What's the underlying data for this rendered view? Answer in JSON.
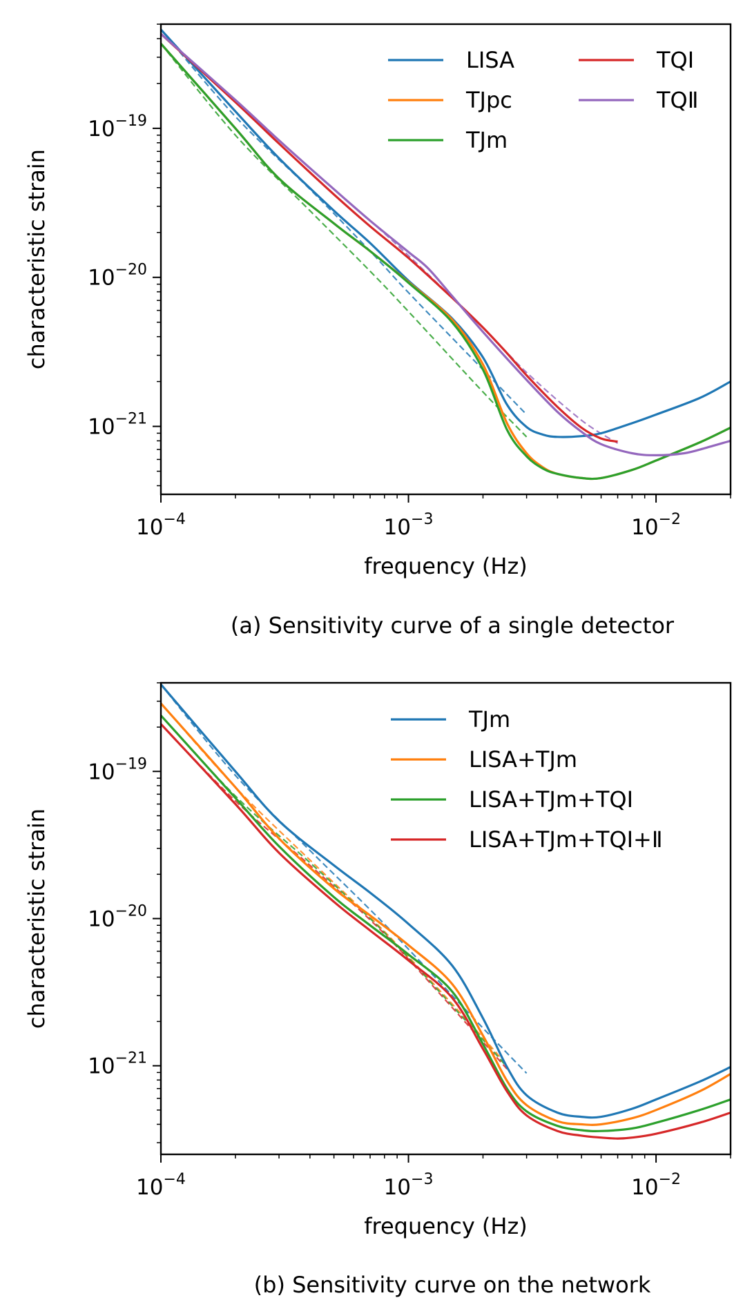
{
  "chart_data": [
    {
      "type": "line",
      "caption": "(a) Sensitivity curve of a single detector",
      "xlabel": "frequency (Hz)",
      "ylabel": "characteristic strain",
      "xscale": "log",
      "yscale": "log",
      "xlim": [
        0.0001,
        0.02
      ],
      "ylim": [
        3.5e-22,
        5e-19
      ],
      "xticks": [
        {
          "value": 0.0001,
          "base": "10",
          "exp": "−4"
        },
        {
          "value": 0.001,
          "base": "10",
          "exp": "−3"
        },
        {
          "value": 0.01,
          "base": "10",
          "exp": "−2"
        }
      ],
      "yticks": [
        {
          "value": 1e-19,
          "base": "10",
          "exp": "−19"
        },
        {
          "value": 1e-20,
          "base": "10",
          "exp": "−20"
        },
        {
          "value": 1e-21,
          "base": "10",
          "exp": "−21"
        }
      ],
      "legend": {
        "location": "top-right",
        "columns": 2
      },
      "series": [
        {
          "name": "LISA",
          "color": "#1f77b4",
          "style": "solid",
          "x": [
            0.0001,
            0.0002,
            0.0003,
            0.0005,
            0.0007,
            0.001,
            0.0015,
            0.002,
            0.0025,
            0.003,
            0.0035,
            0.004,
            0.005,
            0.006,
            0.008,
            0.01,
            0.015,
            0.02
          ],
          "y": [
            4.6e-19,
            1.3e-19,
            6.3e-20,
            2.8e-20,
            1.7e-20,
            9.5e-21,
            5.3e-21,
            2.9e-21,
            1.4e-21,
            9.9e-22,
            8.8e-22,
            8.5e-22,
            8.6e-22,
            9e-22,
            1.05e-21,
            1.2e-21,
            1.55e-21,
            2e-21
          ]
        },
        {
          "name": "TJpc",
          "color": "#ff7f0e",
          "style": "solid",
          "x": [
            0.0001,
            0.0002,
            0.0003,
            0.0005,
            0.0007,
            0.001,
            0.0015,
            0.002,
            0.0025,
            0.003,
            0.0035,
            0.004,
            0.005,
            0.006,
            0.008,
            0.01,
            0.015,
            0.02
          ],
          "y": [
            3.7e-19,
            1e-19,
            4.6e-20,
            2.3e-20,
            1.5e-20,
            9.3e-21,
            5.2e-21,
            2.6e-21,
            1.05e-21,
            6.6e-22,
            5.3e-22,
            4.8e-22,
            4.5e-22,
            4.5e-22,
            5.1e-22,
            5.9e-22,
            7.8e-22,
            9.8e-22
          ]
        },
        {
          "name": "TJm",
          "color": "#2ca02c",
          "style": "solid",
          "x": [
            0.0001,
            0.0002,
            0.0003,
            0.0005,
            0.0007,
            0.001,
            0.0015,
            0.002,
            0.0025,
            0.003,
            0.0035,
            0.004,
            0.005,
            0.006,
            0.008,
            0.01,
            0.015,
            0.02
          ],
          "y": [
            3.7e-19,
            1e-19,
            4.6e-20,
            2.3e-20,
            1.5e-20,
            9.2e-21,
            5e-21,
            2.4e-21,
            9.5e-22,
            6.3e-22,
            5.2e-22,
            4.8e-22,
            4.5e-22,
            4.5e-22,
            5.1e-22,
            5.9e-22,
            7.8e-22,
            9.8e-22
          ]
        },
        {
          "name": "TQI",
          "color": "#d62728",
          "style": "solid",
          "x": [
            0.0001,
            0.0002,
            0.0003,
            0.0005,
            0.0007,
            0.001,
            0.0015,
            0.002,
            0.0025,
            0.003,
            0.004,
            0.005,
            0.006,
            0.007
          ],
          "y": [
            4.3e-19,
            1.5e-19,
            7.9e-20,
            3.6e-20,
            2.2e-20,
            1.35e-20,
            7.3e-21,
            4.6e-21,
            3.1e-21,
            2.2e-21,
            1.35e-21,
            9.8e-22,
            8.3e-22,
            7.9e-22
          ]
        },
        {
          "name": "TQⅡ",
          "color": "#9467bd",
          "style": "solid",
          "x": [
            0.0001,
            0.0002,
            0.0003,
            0.0005,
            0.0007,
            0.001,
            0.0012,
            0.0015,
            0.002,
            0.003,
            0.004,
            0.005,
            0.006,
            0.008,
            0.01,
            0.013,
            0.016,
            0.02
          ],
          "y": [
            4.3e-19,
            1.55e-19,
            8.3e-20,
            3.9e-20,
            2.4e-20,
            1.48e-20,
            1.15e-20,
            7.5e-21,
            4.3e-21,
            2.05e-21,
            1.25e-21,
            9.2e-22,
            7.6e-22,
            6.6e-22,
            6.4e-22,
            6.6e-22,
            7.2e-22,
            8e-22
          ]
        },
        {
          "name": "",
          "color": "#1f77b4",
          "style": "dashed",
          "x": [
            0.0001,
            0.0002,
            0.0004,
            0.0007,
            0.001,
            0.002,
            0.003
          ],
          "y": [
            4.6e-19,
            1.2e-19,
            3.9e-20,
            1.5e-20,
            7.9e-21,
            2.4e-21,
            1.2e-21
          ]
        },
        {
          "name": "",
          "color": "#2ca02c",
          "style": "dashed",
          "x": [
            0.0001,
            0.0002,
            0.0004,
            0.0007,
            0.001,
            0.002,
            0.003
          ],
          "y": [
            3.7e-19,
            9e-20,
            2.8e-20,
            1.1e-20,
            5.9e-21,
            1.7e-21,
            8.5e-22
          ]
        },
        {
          "name": "",
          "color": "#9467bd",
          "style": "dashed",
          "x": [
            0.0001,
            0.0002,
            0.0004,
            0.0007,
            0.001,
            0.002,
            0.003,
            0.005,
            0.007
          ],
          "y": [
            4.3e-19,
            1.55e-19,
            5.4e-20,
            2.4e-20,
            1.4e-20,
            4.6e-21,
            2.3e-21,
            1.1e-21,
            7.7e-22
          ]
        }
      ]
    },
    {
      "type": "line",
      "caption": "(b) Sensitivity curve on the network",
      "xlabel": "frequency (Hz)",
      "ylabel": "characteristic strain",
      "xscale": "log",
      "yscale": "log",
      "xlim": [
        0.0001,
        0.02
      ],
      "ylim": [
        2.5e-22,
        4e-19
      ],
      "xticks": [
        {
          "value": 0.0001,
          "base": "10",
          "exp": "−4"
        },
        {
          "value": 0.001,
          "base": "10",
          "exp": "−3"
        },
        {
          "value": 0.01,
          "base": "10",
          "exp": "−2"
        }
      ],
      "yticks": [
        {
          "value": 1e-19,
          "base": "10",
          "exp": "−19"
        },
        {
          "value": 1e-20,
          "base": "10",
          "exp": "−20"
        },
        {
          "value": 1e-21,
          "base": "10",
          "exp": "−21"
        }
      ],
      "legend": {
        "location": "top-right",
        "columns": 1
      },
      "series": [
        {
          "name": "TJm",
          "color": "#1f77b4",
          "style": "solid",
          "x": [
            0.0001,
            0.0002,
            0.0003,
            0.0005,
            0.0007,
            0.001,
            0.0015,
            0.002,
            0.0025,
            0.003,
            0.004,
            0.005,
            0.006,
            0.008,
            0.01,
            0.015,
            0.02
          ],
          "y": [
            3.9e-19,
            1e-19,
            4.6e-20,
            2.3e-20,
            1.5e-20,
            9.2e-21,
            4.8e-21,
            2.1e-21,
            9.8e-22,
            6.3e-22,
            4.8e-22,
            4.5e-22,
            4.5e-22,
            5.1e-22,
            5.9e-22,
            7.8e-22,
            9.8e-22
          ]
        },
        {
          "name": "LISA+TJm",
          "color": "#ff7f0e",
          "style": "solid",
          "x": [
            0.0001,
            0.0002,
            0.0003,
            0.0005,
            0.0007,
            0.001,
            0.0015,
            0.002,
            0.0025,
            0.003,
            0.004,
            0.005,
            0.006,
            0.008,
            0.01,
            0.015,
            0.02
          ],
          "y": [
            2.9e-19,
            7.8e-20,
            3.5e-20,
            1.6e-20,
            1.05e-20,
            6.6e-21,
            3.6e-21,
            1.6e-21,
            7.9e-22,
            5.4e-22,
            4.2e-22,
            4e-22,
            4e-22,
            4.4e-22,
            5e-22,
            6.7e-22,
            8.8e-22
          ]
        },
        {
          "name": "LISA+TJm+TQI",
          "color": "#2ca02c",
          "style": "solid",
          "x": [
            0.0001,
            0.0002,
            0.0003,
            0.0005,
            0.0007,
            0.001,
            0.0015,
            0.002,
            0.0025,
            0.003,
            0.004,
            0.005,
            0.006,
            0.008,
            0.01,
            0.015,
            0.02
          ],
          "y": [
            2.4e-19,
            6.6e-20,
            3.1e-20,
            1.4e-20,
            9e-21,
            5.7e-21,
            3.2e-21,
            1.4e-21,
            7e-22,
            4.9e-22,
            3.9e-22,
            3.65e-22,
            3.6e-22,
            3.75e-22,
            4.1e-22,
            5e-22,
            5.9e-22
          ]
        },
        {
          "name": "LISA+TJm+TQI+Ⅱ",
          "color": "#d62728",
          "style": "solid",
          "x": [
            0.0001,
            0.0002,
            0.0003,
            0.0005,
            0.0007,
            0.001,
            0.0015,
            0.002,
            0.0025,
            0.003,
            0.004,
            0.005,
            0.006,
            0.007,
            0.008,
            0.01,
            0.015,
            0.02
          ],
          "y": [
            2.1e-19,
            6e-20,
            2.8e-20,
            1.3e-20,
            8.3e-21,
            5.2e-21,
            2.9e-21,
            1.3e-21,
            6.7e-22,
            4.6e-22,
            3.6e-22,
            3.35e-22,
            3.25e-22,
            3.2e-22,
            3.25e-22,
            3.45e-22,
            4.1e-22,
            4.8e-22
          ]
        },
        {
          "name": "",
          "color": "#1f77b4",
          "style": "dashed",
          "x": [
            0.0001,
            0.0002,
            0.0004,
            0.0007,
            0.001,
            0.002,
            0.003
          ],
          "y": [
            3.9e-19,
            9.4e-20,
            2.9e-20,
            1.15e-20,
            6.2e-21,
            1.8e-21,
            8.9e-22
          ]
        },
        {
          "name": "",
          "color": "#ff7f0e",
          "style": "dashed",
          "x": [
            0.0001,
            0.0002,
            0.0004,
            0.0007,
            0.001,
            0.002,
            0.0025
          ],
          "y": [
            2.9e-19,
            7.8e-20,
            2.5e-20,
            1.02e-20,
            5.5e-21,
            1.55e-21,
            1e-21
          ]
        },
        {
          "name": "",
          "color": "#2ca02c",
          "style": "dashed",
          "x": [
            0.0001,
            0.0002,
            0.0004,
            0.0007,
            0.001,
            0.002,
            0.0025
          ],
          "y": [
            2.4e-19,
            6.8e-20,
            2.4e-20,
            1e-20,
            5.4e-21,
            1.5e-21,
            9.8e-22
          ]
        },
        {
          "name": "",
          "color": "#d62728",
          "style": "dashed",
          "x": [
            0.0001,
            0.0002,
            0.0004,
            0.0007,
            0.001,
            0.002,
            0.0025
          ],
          "y": [
            2.1e-19,
            6.3e-20,
            2.3e-20,
            9.8e-21,
            5.3e-21,
            1.45e-21,
            9.5e-22
          ]
        }
      ]
    }
  ]
}
